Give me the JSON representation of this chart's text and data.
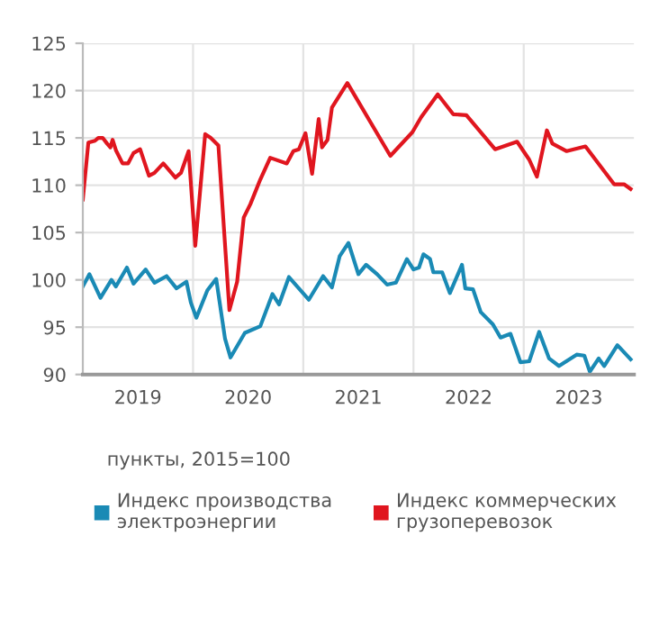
{
  "chart_data": {
    "type": "line",
    "xlim": [
      2019.0,
      2024.0
    ],
    "xticks": [
      {
        "value": 2020,
        "label": null
      },
      {
        "value": 2021,
        "label": null
      },
      {
        "value": 2022,
        "label": null
      },
      {
        "value": 2023,
        "label": null
      },
      {
        "value": 2019.5,
        "label": "2019"
      },
      {
        "value": 2020.5,
        "label": "2020"
      },
      {
        "value": 2021.5,
        "label": "2021"
      },
      {
        "value": 2022.5,
        "label": "2022"
      },
      {
        "value": 2023.5,
        "label": "2023"
      }
    ],
    "ylim": [
      90,
      125
    ],
    "yticks": [
      90,
      95,
      100,
      105,
      110,
      115,
      120,
      125
    ],
    "grid": true,
    "legend": "bottom",
    "marker": "none",
    "line_style": "solid",
    "annotations": [
      "пункты, 2015=100"
    ],
    "series": [
      {
        "name": "Индекс производства электроэнергии",
        "color": "#1a8ab5",
        "x": [
          2019.0,
          2019.06,
          2019.16,
          2019.26,
          2019.3,
          2019.4,
          2019.46,
          2019.57,
          2019.65,
          2019.76,
          2019.85,
          2019.94,
          2019.98,
          2020.03,
          2020.13,
          2020.21,
          2020.29,
          2020.34,
          2020.47,
          2020.61,
          2020.72,
          2020.78,
          2020.87,
          2021.05,
          2021.18,
          2021.26,
          2021.33,
          2021.41,
          2021.5,
          2021.57,
          2021.67,
          2021.76,
          2021.84,
          2021.94,
          2022.0,
          2022.05,
          2022.09,
          2022.15,
          2022.18,
          2022.26,
          2022.33,
          2022.44,
          2022.47,
          2022.54,
          2022.61,
          2022.72,
          2022.79,
          2022.88,
          2022.97,
          2023.05,
          2023.14,
          2023.23,
          2023.32,
          2023.48,
          2023.55,
          2023.6,
          2023.68,
          2023.73,
          2023.85,
          2023.97
        ],
        "values": [
          99.3,
          100.6,
          98.1,
          100.0,
          99.3,
          101.3,
          99.6,
          101.1,
          99.7,
          100.4,
          99.1,
          99.8,
          97.6,
          96.0,
          98.9,
          100.1,
          93.8,
          91.8,
          94.4,
          95.1,
          98.5,
          97.4,
          100.3,
          97.9,
          100.4,
          99.2,
          102.5,
          103.9,
          100.6,
          101.6,
          100.6,
          99.5,
          99.7,
          102.2,
          101.1,
          101.3,
          102.7,
          102.2,
          100.8,
          100.8,
          98.6,
          101.6,
          99.1,
          99.0,
          96.6,
          95.3,
          93.9,
          94.3,
          91.3,
          91.4,
          94.5,
          91.7,
          90.9,
          92.1,
          92.0,
          90.3,
          91.7,
          90.9,
          93.1,
          91.6
        ]
      },
      {
        "name": "Индекс коммерческих грузоперевозок",
        "color": "#e0161f",
        "x": [
          2019.0,
          2019.05,
          2019.11,
          2019.14,
          2019.18,
          2019.22,
          2019.25,
          2019.27,
          2019.3,
          2019.36,
          2019.41,
          2019.46,
          2019.52,
          2019.6,
          2019.65,
          2019.73,
          2019.84,
          2019.89,
          2019.96,
          2020.02,
          2020.11,
          2020.16,
          2020.23,
          2020.33,
          2020.4,
          2020.46,
          2020.52,
          2020.61,
          2020.7,
          2020.85,
          2020.91,
          2020.96,
          2021.02,
          2021.08,
          2021.14,
          2021.17,
          2021.22,
          2021.26,
          2021.4,
          2021.79,
          2021.99,
          2022.07,
          2022.22,
          2022.36,
          2022.48,
          2022.74,
          2022.94,
          2023.05,
          2023.12,
          2023.21,
          2023.26,
          2023.39,
          2023.56,
          2023.82,
          2023.91,
          2023.97
        ],
        "values": [
          108.5,
          114.5,
          114.7,
          115.0,
          115.0,
          114.4,
          114.0,
          114.8,
          113.7,
          112.3,
          112.3,
          113.4,
          113.8,
          111.0,
          111.3,
          112.3,
          110.8,
          111.3,
          113.6,
          103.6,
          115.4,
          115.0,
          114.2,
          96.8,
          99.8,
          106.6,
          108.0,
          110.6,
          112.9,
          112.3,
          113.6,
          113.8,
          115.5,
          111.2,
          117.0,
          114.0,
          114.8,
          118.2,
          120.8,
          113.1,
          115.6,
          117.2,
          119.6,
          117.5,
          117.4,
          113.8,
          114.6,
          112.7,
          110.9,
          115.8,
          114.4,
          113.6,
          114.1,
          110.1,
          110.1,
          109.6
        ]
      }
    ]
  }
}
